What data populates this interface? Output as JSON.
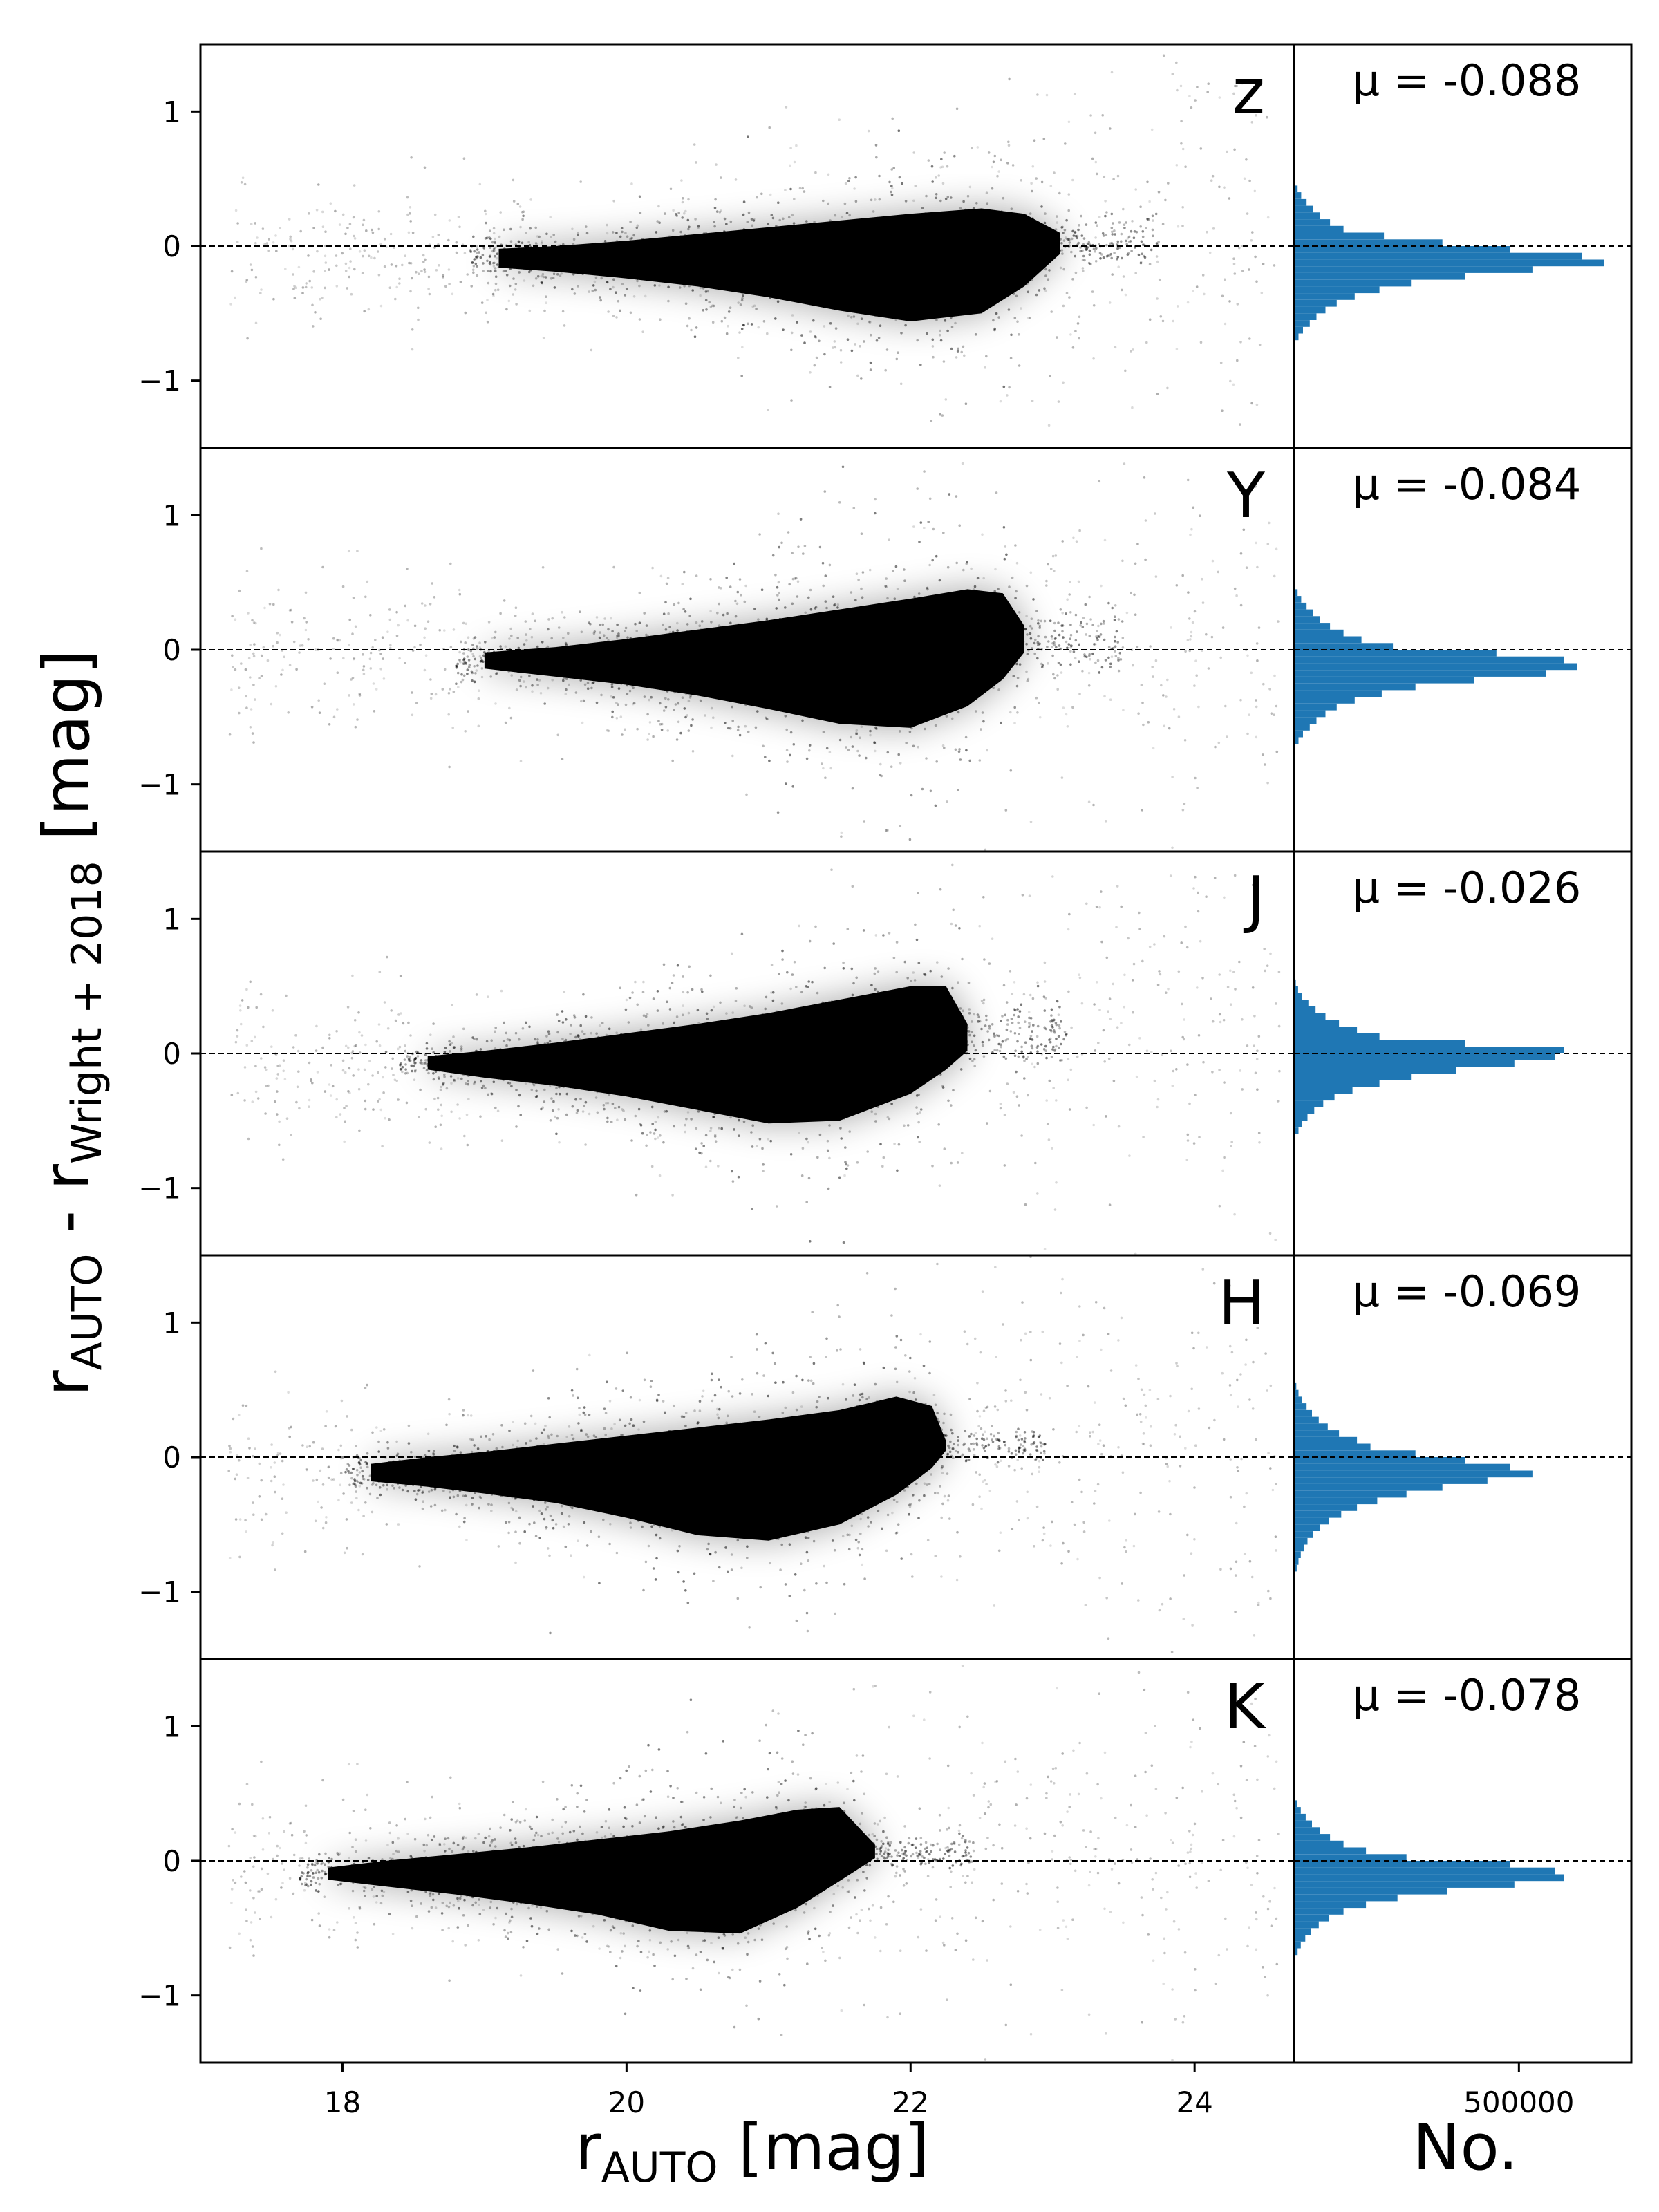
{
  "chart_data": {
    "type": "scatter",
    "title": "",
    "xlabel": {
      "main": "r",
      "sub": "AUTO",
      "unit": " [mag]"
    },
    "ylabel": {
      "main_left": "r",
      "sub_left": "AUTO",
      "mid": " - r",
      "sub_right": "Wright + 2018",
      "unit": " [mag]"
    },
    "hist_xlabel": "No.",
    "xlim": [
      17.0,
      24.7
    ],
    "ylim": [
      -1.5,
      1.5
    ],
    "hist_xlim": [
      0,
      750000
    ],
    "xticks": [
      18,
      20,
      22,
      24
    ],
    "xtick_labels": [
      "18",
      "20",
      "22",
      "24"
    ],
    "yticks": [
      -1,
      0,
      1
    ],
    "ytick_labels": [
      "−1",
      "0",
      "1"
    ],
    "hist_xticks": [
      500000
    ],
    "hist_xtick_labels": [
      "500000"
    ],
    "reference_line_y": 0,
    "hist_color": "#1f77b4",
    "grid": false,
    "panels": [
      {
        "band": "z",
        "mu_text": "μ = -0.088",
        "mu": -0.088,
        "cloud": {
          "x": [
            19.1,
            19.5,
            20.0,
            20.5,
            21.0,
            21.5,
            22.0,
            22.5,
            22.8,
            23.05
          ],
          "y_top": [
            -0.02,
            0.0,
            0.04,
            0.09,
            0.14,
            0.19,
            0.24,
            0.28,
            0.24,
            0.1
          ],
          "y_bottom": [
            -0.16,
            -0.19,
            -0.24,
            -0.3,
            -0.38,
            -0.48,
            -0.56,
            -0.5,
            -0.3,
            -0.06
          ]
        },
        "hist_bins": [
          -0.7,
          -0.65,
          -0.6,
          -0.55,
          -0.5,
          -0.45,
          -0.4,
          -0.35,
          -0.3,
          -0.25,
          -0.2,
          -0.15,
          -0.1,
          -0.05,
          0.0,
          0.05,
          0.1,
          0.15,
          0.2,
          0.25,
          0.3,
          0.35,
          0.4,
          0.45
        ],
        "hist_counts": [
          10000,
          20000,
          35000,
          50000,
          70000,
          95000,
          135000,
          190000,
          260000,
          380000,
          530000,
          690000,
          640000,
          480000,
          330000,
          200000,
          110000,
          80000,
          58000,
          42000,
          28000,
          16000,
          8000
        ]
      },
      {
        "band": "Y",
        "mu_text": "μ = -0.084",
        "mu": -0.084,
        "cloud": {
          "x": [
            19.0,
            19.5,
            20.0,
            20.5,
            21.0,
            21.5,
            22.0,
            22.4,
            22.65,
            22.8
          ],
          "y_top": [
            -0.02,
            0.02,
            0.08,
            0.15,
            0.22,
            0.3,
            0.38,
            0.45,
            0.42,
            0.18
          ],
          "y_bottom": [
            -0.14,
            -0.2,
            -0.26,
            -0.34,
            -0.44,
            -0.55,
            -0.58,
            -0.42,
            -0.22,
            -0.02
          ]
        },
        "hist_bins": [
          -0.7,
          -0.65,
          -0.6,
          -0.55,
          -0.5,
          -0.45,
          -0.4,
          -0.35,
          -0.3,
          -0.25,
          -0.2,
          -0.15,
          -0.1,
          -0.05,
          0.0,
          0.05,
          0.1,
          0.15,
          0.2,
          0.25,
          0.3,
          0.35,
          0.4,
          0.45
        ],
        "hist_counts": [
          10000,
          20000,
          35000,
          50000,
          70000,
          95000,
          135000,
          195000,
          270000,
          400000,
          560000,
          630000,
          600000,
          450000,
          220000,
          150000,
          110000,
          80000,
          58000,
          42000,
          28000,
          16000,
          8000
        ]
      },
      {
        "band": "J",
        "mu_text": "μ = -0.026",
        "mu": -0.026,
        "cloud": {
          "x": [
            18.6,
            19.0,
            19.5,
            20.0,
            20.5,
            21.0,
            21.5,
            22.0,
            22.25,
            22.4
          ],
          "y_top": [
            -0.02,
            0.02,
            0.08,
            0.15,
            0.22,
            0.3,
            0.4,
            0.5,
            0.5,
            0.22
          ],
          "y_bottom": [
            -0.12,
            -0.18,
            -0.24,
            -0.32,
            -0.42,
            -0.52,
            -0.5,
            -0.3,
            -0.12,
            0.02
          ]
        },
        "hist_bins": [
          -0.6,
          -0.55,
          -0.5,
          -0.45,
          -0.4,
          -0.35,
          -0.3,
          -0.25,
          -0.2,
          -0.15,
          -0.1,
          -0.05,
          0.0,
          0.05,
          0.1,
          0.15,
          0.2,
          0.25,
          0.3,
          0.35,
          0.4,
          0.45,
          0.5,
          0.55
        ],
        "hist_counts": [
          10000,
          18000,
          30000,
          45000,
          65000,
          90000,
          130000,
          190000,
          260000,
          360000,
          490000,
          580000,
          600000,
          380000,
          190000,
          140000,
          100000,
          70000,
          48000,
          32000,
          18000,
          9000,
          4000
        ]
      },
      {
        "band": "H",
        "mu_text": "μ = -0.069",
        "mu": -0.069,
        "cloud": {
          "x": [
            18.2,
            18.6,
            19.0,
            19.5,
            20.0,
            20.5,
            21.0,
            21.5,
            21.9,
            22.15,
            22.25
          ],
          "y_top": [
            -0.05,
            0.0,
            0.04,
            0.1,
            0.16,
            0.22,
            0.28,
            0.35,
            0.45,
            0.38,
            0.12
          ],
          "y_bottom": [
            -0.18,
            -0.22,
            -0.27,
            -0.34,
            -0.45,
            -0.58,
            -0.62,
            -0.5,
            -0.28,
            -0.08,
            0.05
          ]
        },
        "hist_bins": [
          -0.85,
          -0.8,
          -0.75,
          -0.7,
          -0.65,
          -0.6,
          -0.55,
          -0.5,
          -0.45,
          -0.4,
          -0.35,
          -0.3,
          -0.25,
          -0.2,
          -0.15,
          -0.1,
          -0.05,
          0.0,
          0.05,
          0.1,
          0.15,
          0.2,
          0.25,
          0.3,
          0.35,
          0.4,
          0.45,
          0.5,
          0.55
        ],
        "hist_counts": [
          6000,
          10000,
          15000,
          22000,
          30000,
          42000,
          58000,
          78000,
          105000,
          140000,
          185000,
          250000,
          330000,
          430000,
          530000,
          480000,
          380000,
          270000,
          170000,
          140000,
          100000,
          75000,
          55000,
          40000,
          28000,
          18000,
          10000,
          5000
        ]
      },
      {
        "band": "K",
        "mu_text": "μ = -0.078",
        "mu": -0.078,
        "cloud": {
          "x": [
            17.9,
            18.3,
            18.8,
            19.3,
            19.8,
            20.3,
            20.8,
            21.2,
            21.5,
            21.75
          ],
          "y_top": [
            -0.05,
            0.0,
            0.05,
            0.1,
            0.16,
            0.22,
            0.3,
            0.38,
            0.4,
            0.12
          ],
          "y_bottom": [
            -0.14,
            -0.19,
            -0.25,
            -0.32,
            -0.4,
            -0.52,
            -0.54,
            -0.35,
            -0.15,
            0.02
          ]
        },
        "hist_bins": [
          -0.7,
          -0.65,
          -0.6,
          -0.55,
          -0.5,
          -0.45,
          -0.4,
          -0.35,
          -0.3,
          -0.25,
          -0.2,
          -0.15,
          -0.1,
          -0.05,
          0.0,
          0.05,
          0.1,
          0.15,
          0.2,
          0.25,
          0.3,
          0.35,
          0.4,
          0.45
        ],
        "hist_counts": [
          8000,
          15000,
          25000,
          38000,
          55000,
          78000,
          110000,
          160000,
          230000,
          340000,
          490000,
          600000,
          580000,
          480000,
          250000,
          160000,
          110000,
          80000,
          58000,
          40000,
          26000,
          15000,
          7000
        ]
      }
    ]
  }
}
